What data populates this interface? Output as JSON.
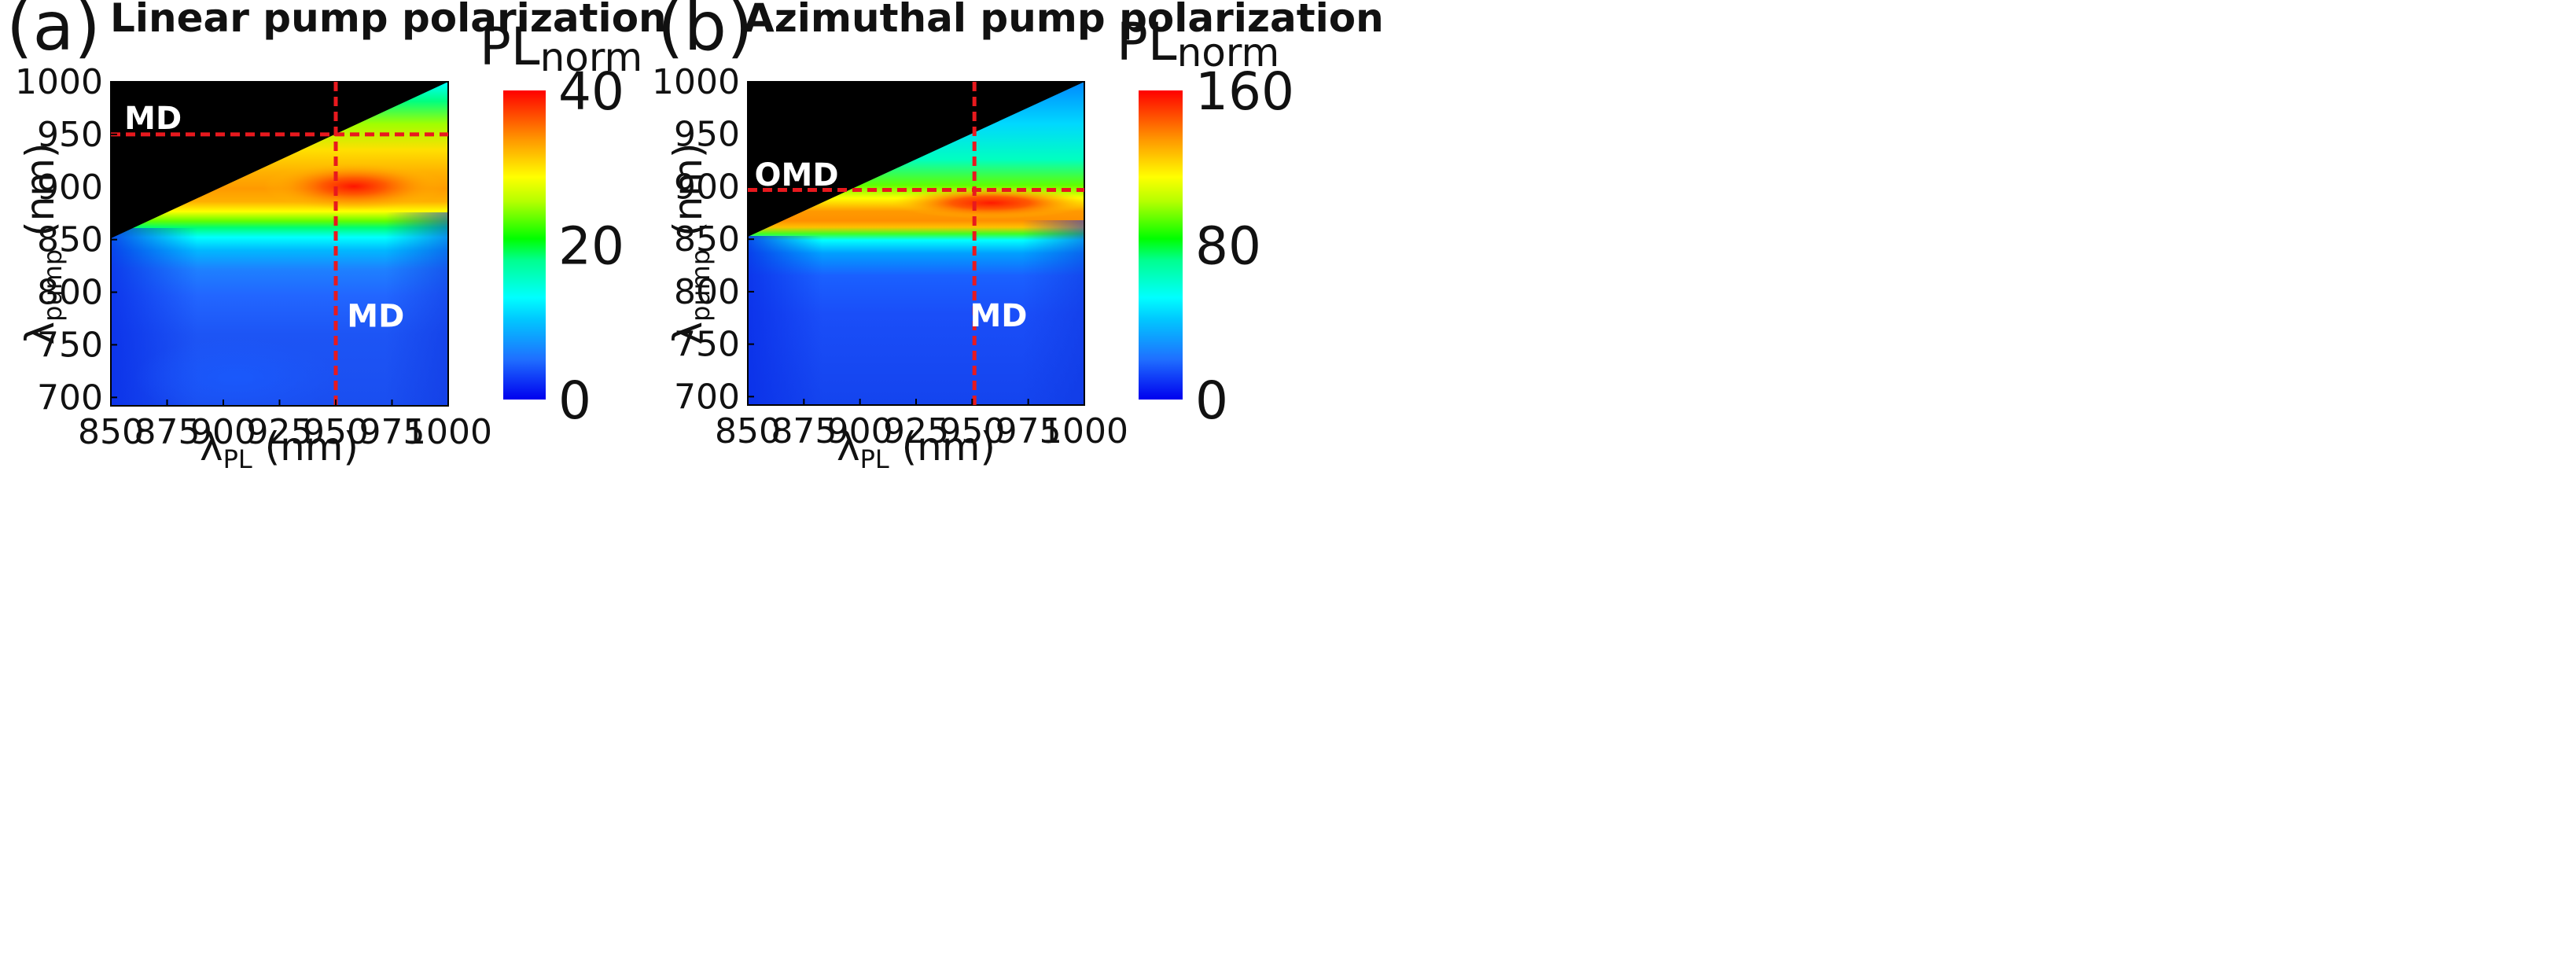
{
  "chart_data": [
    {
      "type": "heatmap",
      "panel_label": "(a)",
      "title": "Linear pump polarization",
      "xlabel": "λ",
      "xlabel_sub": "PL",
      "xlabel_unit": " (nm)",
      "ylabel": "λ",
      "ylabel_sub": "pump",
      "ylabel_unit": " (nm)",
      "xlim": [
        850,
        1000
      ],
      "ylim": [
        692,
        1000
      ],
      "xticks": [
        850,
        875,
        900,
        925,
        950,
        975,
        1000
      ],
      "yticks": [
        700,
        750,
        800,
        850,
        900,
        950,
        1000
      ],
      "colorbar": {
        "label": "PL",
        "label_sub": "norm",
        "min": 0,
        "max": 40,
        "ticks": [
          0,
          20,
          40
        ]
      },
      "excluded_region": "λpump > λPL (upper-left triangle, black)",
      "peak": {
        "x": 955,
        "y": 900,
        "value": 40
      },
      "ridge_center_y": 902,
      "dashed_lines": {
        "vertical_x": 950,
        "horizontal_y": 950
      },
      "annotations": [
        {
          "text": "MD",
          "x": 856,
          "y": 955
        },
        {
          "text": "MD",
          "x": 955,
          "y": 767
        }
      ]
    },
    {
      "type": "heatmap",
      "panel_label": "(b)",
      "title": "Azimuthal pump polarization",
      "xlabel": "λ",
      "xlabel_sub": "PL",
      "xlabel_unit": " (nm)",
      "ylabel": "λ",
      "ylabel_sub": "pump",
      "ylabel_unit": " (nm)",
      "xlim": [
        850,
        1000
      ],
      "ylim": [
        692,
        1000
      ],
      "xticks": [
        850,
        875,
        900,
        925,
        950,
        975,
        1000
      ],
      "yticks": [
        700,
        750,
        800,
        850,
        900,
        950,
        1000
      ],
      "colorbar": {
        "label": "PL",
        "label_sub": "norm",
        "min": 0,
        "max": 160,
        "ticks": [
          0,
          80,
          160
        ]
      },
      "excluded_region": "λpump > λPL (upper-left triangle, black)",
      "peak": {
        "x": 955,
        "y": 884,
        "value": 160
      },
      "ridge_center_y": 884,
      "dashed_lines": {
        "vertical_x": 951,
        "horizontal_y": 897
      },
      "annotations": [
        {
          "text": "OMD",
          "x": 853,
          "y": 901
        },
        {
          "text": "MD",
          "x": 949,
          "y": 767
        }
      ]
    }
  ],
  "colors": {
    "dashed_line": "#e8191e",
    "excluded": "#000000",
    "annotation_text": "#ffffff"
  }
}
